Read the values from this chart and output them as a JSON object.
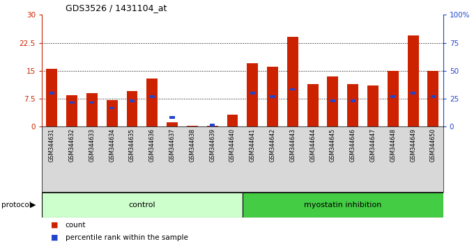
{
  "title": "GDS3526 / 1431104_at",
  "samples": [
    "GSM344631",
    "GSM344632",
    "GSM344633",
    "GSM344634",
    "GSM344635",
    "GSM344636",
    "GSM344637",
    "GSM344638",
    "GSM344639",
    "GSM344640",
    "GSM344641",
    "GSM344642",
    "GSM344643",
    "GSM344644",
    "GSM344645",
    "GSM344646",
    "GSM344647",
    "GSM344648",
    "GSM344649",
    "GSM344650"
  ],
  "red_values": [
    15.5,
    8.5,
    9.0,
    7.2,
    9.5,
    13.0,
    1.1,
    0.3,
    0.3,
    3.2,
    17.0,
    16.0,
    24.0,
    11.5,
    13.5,
    11.5,
    11.0,
    15.0,
    24.5,
    15.0
  ],
  "blue_values": [
    9.0,
    6.5,
    6.5,
    5.0,
    7.0,
    8.0,
    2.5,
    0.0,
    0.5,
    0.0,
    9.0,
    8.0,
    10.0,
    0.0,
    7.0,
    7.0,
    0.0,
    8.0,
    9.0,
    8.0
  ],
  "red_color": "#cc2200",
  "blue_color": "#2244cc",
  "ylim_left": [
    0,
    30
  ],
  "ylim_right": [
    0,
    100
  ],
  "yticks_left": [
    0,
    7.5,
    15.0,
    22.5,
    30
  ],
  "ytick_labels_left": [
    "0",
    "7.5",
    "15",
    "22.5",
    "30"
  ],
  "yticks_right": [
    0,
    25,
    50,
    75,
    100
  ],
  "ytick_labels_right": [
    "0",
    "25",
    "50",
    "75",
    "100%"
  ],
  "groups": [
    {
      "label": "control",
      "start": 0,
      "end": 10,
      "color": "#ccffcc"
    },
    {
      "label": "myostatin inhibition",
      "start": 10,
      "end": 20,
      "color": "#44cc44"
    }
  ],
  "protocol_label": "protocol",
  "legend_red_label": "count",
  "legend_blue_label": "percentile rank within the sample",
  "bar_width": 0.55,
  "bg_color": "#ffffff",
  "label_bg_color": "#d8d8d8",
  "grid_yticks": [
    7.5,
    15.0,
    22.5
  ]
}
